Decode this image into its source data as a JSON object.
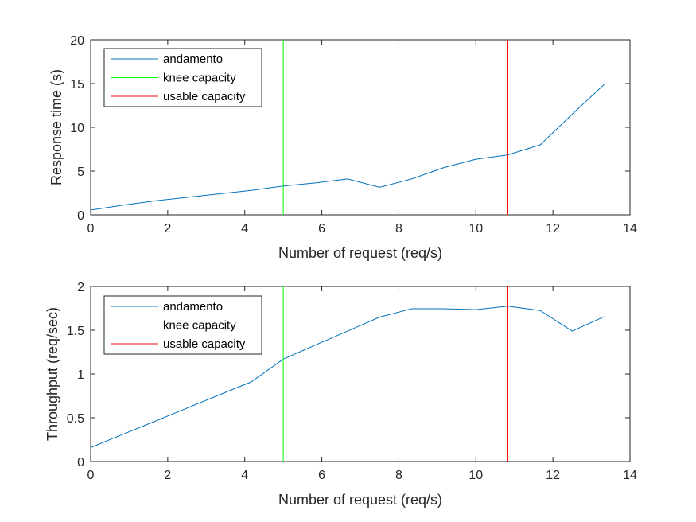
{
  "chart_data": [
    {
      "type": "line",
      "xlabel": "Number of request (req/s)",
      "ylabel": "Response time (s)",
      "xlim": [
        0,
        14
      ],
      "ylim": [
        0,
        20
      ],
      "xticks": [
        "0",
        "2",
        "4",
        "6",
        "8",
        "10",
        "12",
        "14"
      ],
      "yticks": [
        "0",
        "5",
        "10",
        "15",
        "20"
      ],
      "grid": false,
      "legend_placement": "top-left",
      "series": [
        {
          "name": "andamento",
          "color": "#0072BD",
          "x": [
            0,
            0.83,
            1.67,
            2.5,
            3.33,
            4.17,
            5.0,
            5.83,
            6.67,
            7.5,
            8.33,
            9.17,
            10.0,
            10.83,
            11.67,
            12.5,
            13.33
          ],
          "y": [
            0.55,
            1.1,
            1.6,
            2.0,
            2.4,
            2.8,
            3.3,
            3.65,
            4.1,
            3.15,
            4.1,
            5.4,
            6.35,
            6.85,
            8.0,
            11.5,
            14.9
          ]
        },
        {
          "name": "knee capacity",
          "color": "#00FF00",
          "x": [
            5.0,
            5.0
          ],
          "y": [
            0,
            20
          ]
        },
        {
          "name": "usable capacity",
          "color": "#FF0000",
          "x": [
            10.83,
            10.83
          ],
          "y": [
            0,
            20
          ]
        }
      ]
    },
    {
      "type": "line",
      "xlabel": "Number of request (req/s)",
      "ylabel": "Throughput (req/sec)",
      "xlim": [
        0,
        14
      ],
      "ylim": [
        0,
        2
      ],
      "xticks": [
        "0",
        "2",
        "4",
        "6",
        "8",
        "10",
        "12",
        "14"
      ],
      "yticks": [
        "0",
        "0.5",
        "1",
        "1.5",
        "2"
      ],
      "grid": false,
      "legend_placement": "top-left",
      "series": [
        {
          "name": "andamento",
          "color": "#0072BD",
          "x": [
            0,
            0.83,
            1.67,
            2.5,
            3.33,
            4.17,
            5.0,
            5.83,
            6.67,
            7.5,
            8.33,
            9.17,
            10.0,
            10.83,
            11.67,
            12.5,
            13.33
          ],
          "y": [
            0.16,
            0.31,
            0.46,
            0.61,
            0.76,
            0.91,
            1.17,
            1.33,
            1.49,
            1.65,
            1.745,
            1.745,
            1.735,
            1.775,
            1.725,
            1.49,
            1.655
          ]
        },
        {
          "name": "knee capacity",
          "color": "#00FF00",
          "x": [
            5.0,
            5.0
          ],
          "y": [
            0,
            2
          ]
        },
        {
          "name": "usable capacity",
          "color": "#FF0000",
          "x": [
            10.83,
            10.83
          ],
          "y": [
            0,
            2
          ]
        }
      ]
    }
  ]
}
